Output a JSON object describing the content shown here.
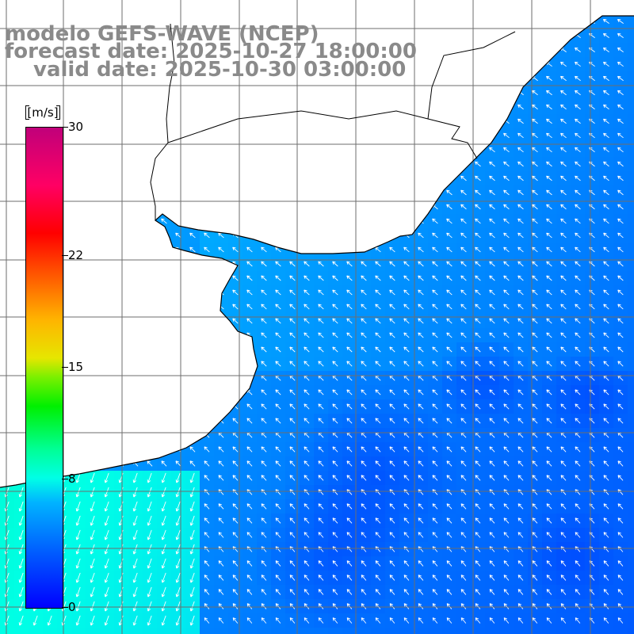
{
  "header": {
    "line1": "modelo GEFS-WAVE (NCEP)",
    "line2": "forecast date: 2025-10-27 18:00:00",
    "line3": "valid date: 2025-10-30 03:00:00"
  },
  "colorbar": {
    "unit_label": "[m/s]",
    "ticks": [
      {
        "value": 30,
        "label": "30"
      },
      {
        "value": 22,
        "label": "22"
      },
      {
        "value": 15,
        "label": "15"
      },
      {
        "value": 8,
        "label": "8"
      },
      {
        "value": 0,
        "label": "0"
      }
    ],
    "min": 0,
    "max": 30
  },
  "map": {
    "land_color": "#ffffff",
    "coastline_color": "#000000",
    "grid_color": "#6e6e6e",
    "arrow_color": "#ffffff",
    "region": "south-west Atlantic, Brazil / Uruguay / Argentina coast"
  },
  "chart_data": {
    "type": "heatmap",
    "title": "modelo GEFS-WAVE (NCEP)",
    "variable_unit": "[m/s]",
    "colorbar_range": [
      0,
      30
    ],
    "colorbar_ticks": [
      0,
      8,
      15,
      22,
      30
    ],
    "notes": "gridded wind speed field with white direction arrows over ocean; land masked white"
  }
}
